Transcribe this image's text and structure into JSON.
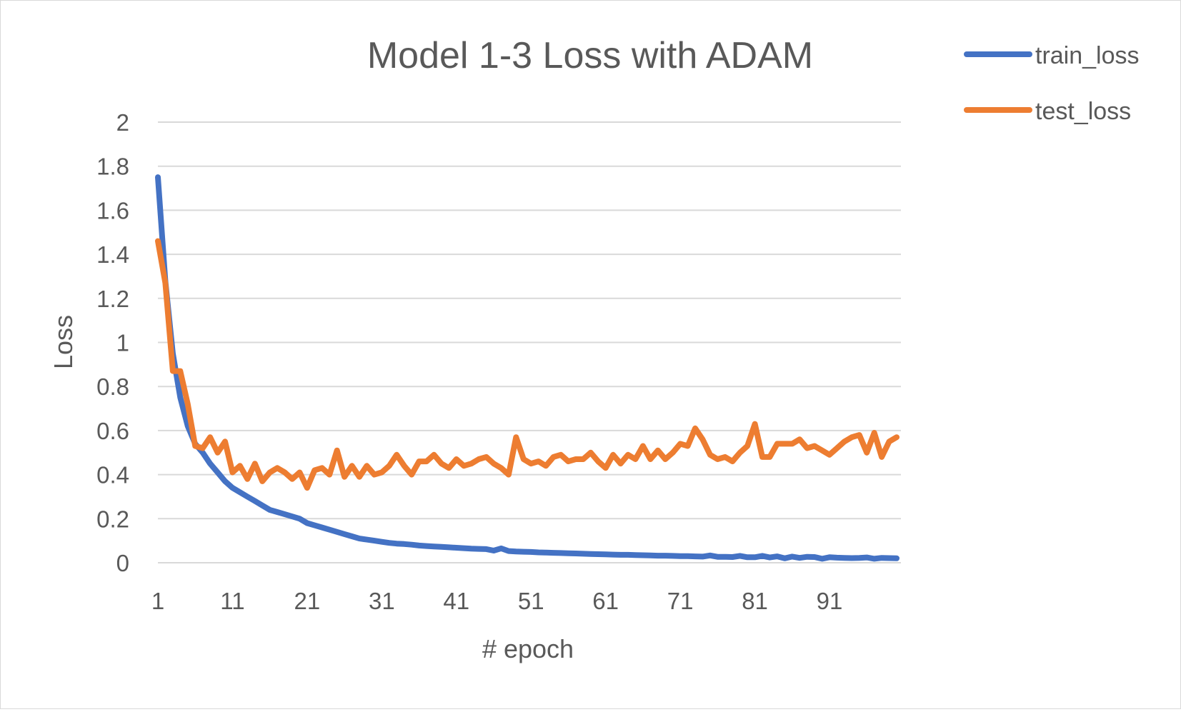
{
  "chart_data": {
    "type": "line",
    "title": "Model 1-3 Loss with ADAM",
    "xlabel": "# epoch",
    "ylabel": "Loss",
    "ylim": [
      0,
      2
    ],
    "yticks": [
      "0",
      "0.2",
      "0.4",
      "0.6",
      "0.8",
      "1",
      "1.2",
      "1.4",
      "1.6",
      "1.8",
      "2"
    ],
    "xticks": [
      "1",
      "11",
      "21",
      "31",
      "41",
      "51",
      "61",
      "71",
      "81",
      "91"
    ],
    "xtick_values": [
      1,
      11,
      21,
      31,
      41,
      51,
      61,
      71,
      81,
      91
    ],
    "xlim": [
      1,
      100
    ],
    "grid": true,
    "legend_position": "top-right",
    "series": [
      {
        "name": "train_loss",
        "color": "#4472C4",
        "values": [
          1.75,
          1.28,
          0.95,
          0.75,
          0.62,
          0.54,
          0.5,
          0.45,
          0.41,
          0.37,
          0.34,
          0.32,
          0.3,
          0.28,
          0.26,
          0.24,
          0.23,
          0.22,
          0.21,
          0.2,
          0.18,
          0.17,
          0.16,
          0.15,
          0.14,
          0.13,
          0.12,
          0.11,
          0.105,
          0.1,
          0.095,
          0.09,
          0.087,
          0.085,
          0.082,
          0.078,
          0.076,
          0.074,
          0.072,
          0.07,
          0.068,
          0.066,
          0.064,
          0.063,
          0.062,
          0.055,
          0.065,
          0.053,
          0.051,
          0.05,
          0.049,
          0.047,
          0.046,
          0.045,
          0.044,
          0.043,
          0.042,
          0.041,
          0.04,
          0.039,
          0.038,
          0.037,
          0.036,
          0.036,
          0.035,
          0.034,
          0.033,
          0.032,
          0.032,
          0.031,
          0.03,
          0.03,
          0.029,
          0.028,
          0.033,
          0.027,
          0.027,
          0.026,
          0.031,
          0.025,
          0.025,
          0.031,
          0.024,
          0.029,
          0.02,
          0.028,
          0.022,
          0.027,
          0.026,
          0.018,
          0.025,
          0.023,
          0.022,
          0.021,
          0.022,
          0.024,
          0.018,
          0.022,
          0.021,
          0.02
        ]
      },
      {
        "name": "test_loss",
        "color": "#ED7D31",
        "values": [
          1.46,
          1.27,
          0.87,
          0.87,
          0.72,
          0.53,
          0.52,
          0.57,
          0.5,
          0.55,
          0.41,
          0.44,
          0.38,
          0.45,
          0.37,
          0.41,
          0.43,
          0.41,
          0.38,
          0.41,
          0.34,
          0.42,
          0.43,
          0.4,
          0.51,
          0.39,
          0.44,
          0.39,
          0.44,
          0.4,
          0.41,
          0.44,
          0.49,
          0.44,
          0.4,
          0.46,
          0.46,
          0.49,
          0.45,
          0.43,
          0.47,
          0.44,
          0.45,
          0.47,
          0.48,
          0.45,
          0.43,
          0.4,
          0.57,
          0.47,
          0.45,
          0.46,
          0.44,
          0.48,
          0.49,
          0.46,
          0.47,
          0.47,
          0.5,
          0.46,
          0.43,
          0.49,
          0.45,
          0.49,
          0.47,
          0.53,
          0.47,
          0.51,
          0.47,
          0.5,
          0.54,
          0.53,
          0.61,
          0.56,
          0.49,
          0.47,
          0.48,
          0.46,
          0.5,
          0.53,
          0.63,
          0.48,
          0.48,
          0.54,
          0.54,
          0.54,
          0.56,
          0.52,
          0.53,
          0.51,
          0.49,
          0.52,
          0.55,
          0.57,
          0.58,
          0.5,
          0.59,
          0.48,
          0.55,
          0.57
        ]
      }
    ]
  }
}
